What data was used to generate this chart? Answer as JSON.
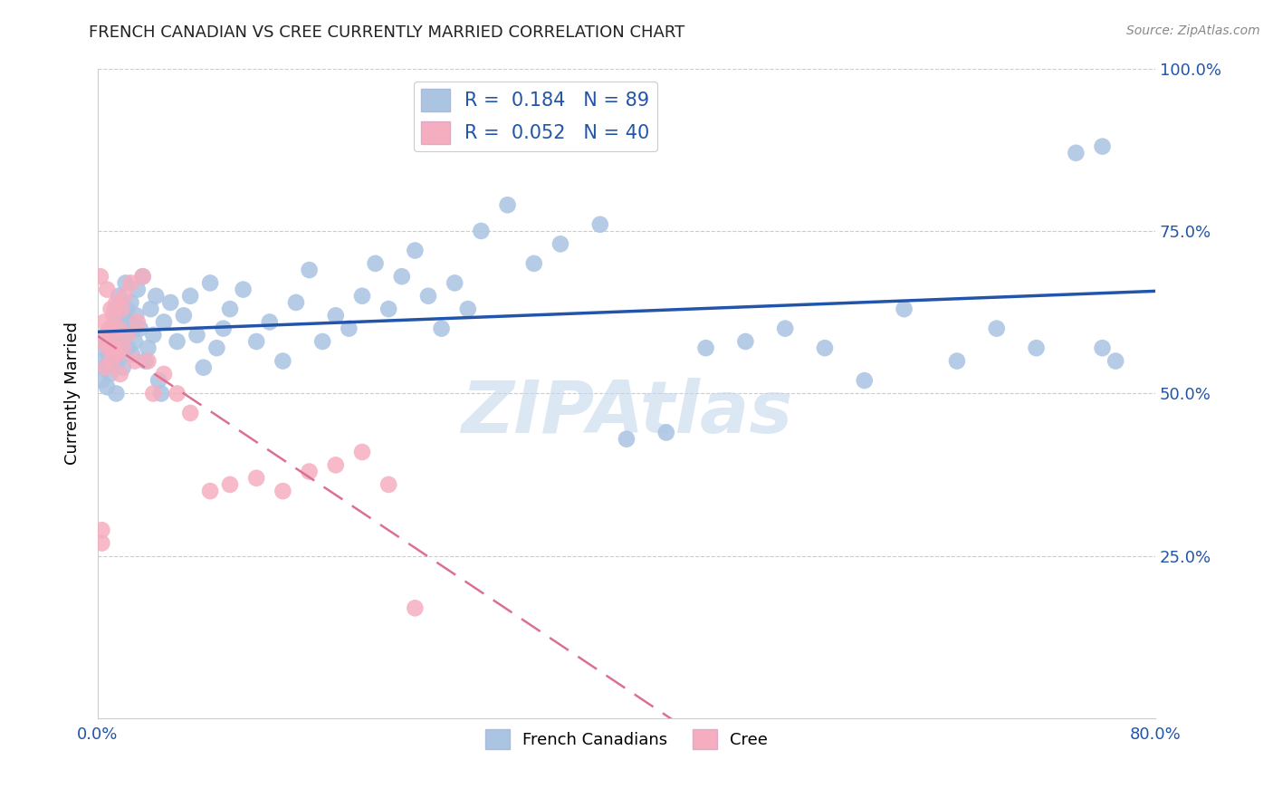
{
  "title": "FRENCH CANADIAN VS CREE CURRENTLY MARRIED CORRELATION CHART",
  "source": "Source: ZipAtlas.com",
  "ylabel": "Currently Married",
  "xlim": [
    0.0,
    0.8
  ],
  "ylim": [
    0.0,
    1.0
  ],
  "french_R": 0.184,
  "french_N": 89,
  "cree_R": 0.052,
  "cree_N": 40,
  "french_color": "#aac4e2",
  "cree_color": "#f5aec0",
  "french_line_color": "#2255aa",
  "cree_line_color": "#dd7090",
  "legend_label_french": "French Canadians",
  "legend_label_cree": "Cree",
  "watermark": "ZIPAtlas",
  "french_x": [
    0.002,
    0.003,
    0.004,
    0.005,
    0.006,
    0.007,
    0.008,
    0.009,
    0.01,
    0.01,
    0.011,
    0.012,
    0.013,
    0.014,
    0.015,
    0.015,
    0.016,
    0.017,
    0.018,
    0.019,
    0.02,
    0.021,
    0.022,
    0.023,
    0.024,
    0.025,
    0.026,
    0.027,
    0.028,
    0.029,
    0.03,
    0.032,
    0.034,
    0.036,
    0.038,
    0.04,
    0.042,
    0.044,
    0.046,
    0.048,
    0.05,
    0.055,
    0.06,
    0.065,
    0.07,
    0.075,
    0.08,
    0.085,
    0.09,
    0.095,
    0.1,
    0.11,
    0.12,
    0.13,
    0.14,
    0.15,
    0.16,
    0.17,
    0.18,
    0.19,
    0.2,
    0.21,
    0.22,
    0.23,
    0.24,
    0.25,
    0.26,
    0.27,
    0.28,
    0.29,
    0.31,
    0.33,
    0.35,
    0.38,
    0.4,
    0.43,
    0.46,
    0.49,
    0.52,
    0.55,
    0.58,
    0.61,
    0.65,
    0.68,
    0.71,
    0.74,
    0.76,
    0.76,
    0.77
  ],
  "french_y": [
    0.55,
    0.52,
    0.57,
    0.54,
    0.59,
    0.51,
    0.56,
    0.53,
    0.58,
    0.55,
    0.6,
    0.57,
    0.63,
    0.5,
    0.62,
    0.55,
    0.65,
    0.58,
    0.61,
    0.54,
    0.59,
    0.67,
    0.63,
    0.57,
    0.61,
    0.64,
    0.56,
    0.6,
    0.58,
    0.62,
    0.66,
    0.6,
    0.68,
    0.55,
    0.57,
    0.63,
    0.59,
    0.65,
    0.52,
    0.5,
    0.61,
    0.64,
    0.58,
    0.62,
    0.65,
    0.59,
    0.54,
    0.67,
    0.57,
    0.6,
    0.63,
    0.66,
    0.58,
    0.61,
    0.55,
    0.64,
    0.69,
    0.58,
    0.62,
    0.6,
    0.65,
    0.7,
    0.63,
    0.68,
    0.72,
    0.65,
    0.6,
    0.67,
    0.63,
    0.75,
    0.79,
    0.7,
    0.73,
    0.76,
    0.43,
    0.44,
    0.57,
    0.58,
    0.6,
    0.57,
    0.52,
    0.63,
    0.55,
    0.6,
    0.57,
    0.87,
    0.88,
    0.57,
    0.55
  ],
  "cree_x": [
    0.002,
    0.003,
    0.003,
    0.004,
    0.005,
    0.006,
    0.007,
    0.008,
    0.009,
    0.01,
    0.01,
    0.011,
    0.012,
    0.013,
    0.014,
    0.015,
    0.016,
    0.017,
    0.018,
    0.019,
    0.02,
    0.022,
    0.025,
    0.028,
    0.03,
    0.034,
    0.038,
    0.042,
    0.05,
    0.06,
    0.07,
    0.085,
    0.1,
    0.12,
    0.14,
    0.16,
    0.18,
    0.2,
    0.22,
    0.24
  ],
  "cree_y": [
    0.68,
    0.29,
    0.27,
    0.58,
    0.61,
    0.54,
    0.66,
    0.57,
    0.6,
    0.63,
    0.55,
    0.59,
    0.62,
    0.57,
    0.64,
    0.56,
    0.6,
    0.53,
    0.63,
    0.57,
    0.65,
    0.59,
    0.67,
    0.55,
    0.61,
    0.68,
    0.55,
    0.5,
    0.53,
    0.5,
    0.47,
    0.35,
    0.36,
    0.37,
    0.35,
    0.38,
    0.39,
    0.41,
    0.36,
    0.17
  ]
}
